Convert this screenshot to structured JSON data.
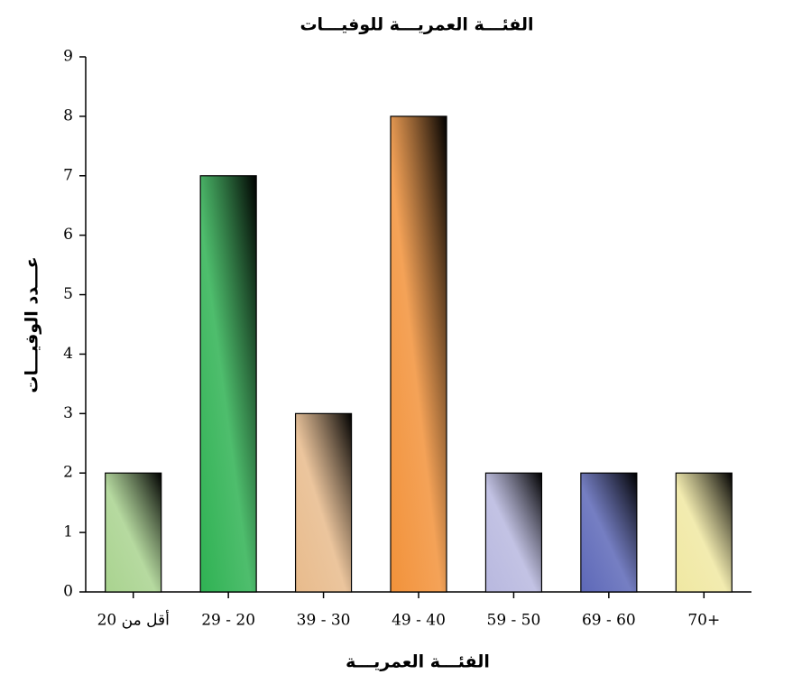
{
  "chart_data": {
    "type": "bar",
    "title": "الفئـــة العمريـــة للوفيـــات",
    "x_label": "الفئـــة العمريـــة",
    "y_label": "عـــدد الوفيـــات",
    "categories": [
      "أقل من 20",
      "29 - 20",
      "39 - 30",
      "49 - 40",
      "59 - 50",
      "69 - 60",
      "70+"
    ],
    "values": [
      2,
      7,
      3,
      8,
      2,
      2,
      2
    ],
    "colors": [
      "#a9d38f",
      "#2fb253",
      "#e8bb8c",
      "#f2923a",
      "#b8b8df",
      "#5d68b8",
      "#f0e8a2"
    ],
    "ylim": [
      0,
      9
    ],
    "yticks": [
      0,
      1,
      2,
      3,
      4,
      5,
      6,
      7,
      8,
      9
    ]
  }
}
